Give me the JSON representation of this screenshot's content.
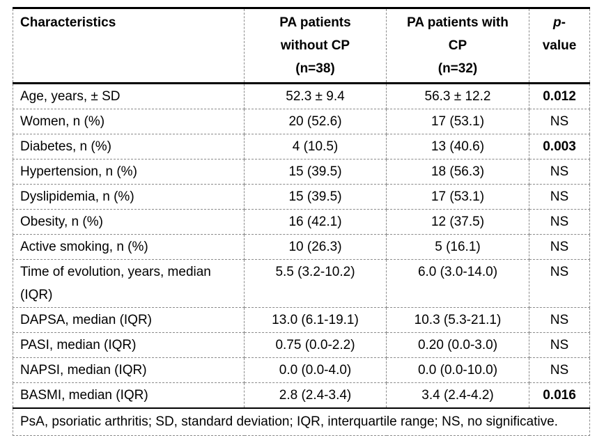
{
  "table": {
    "header": {
      "characteristics": "Characteristics",
      "group1_line1": "PA patients",
      "group1_line2": "without CP",
      "group1_line3": "(n=38)",
      "group2_line1": "PA patients with",
      "group2_line2": "CP",
      "group2_line3": "(n=32)",
      "pvalue_italic": "p",
      "pvalue_rest": "-value"
    },
    "rows": [
      {
        "characteristic": "Age, years, ± SD",
        "without_cp": "52.3 ± 9.4",
        "with_cp": "56.3 ± 12.2",
        "p_value": "0.012"
      },
      {
        "characteristic": "Women, n (%)",
        "without_cp": "20 (52.6)",
        "with_cp": "17 (53.1)",
        "p_value": "NS"
      },
      {
        "characteristic": "Diabetes, n (%)",
        "without_cp": "4 (10.5)",
        "with_cp": "13 (40.6)",
        "p_value": "0.003"
      },
      {
        "characteristic": "Hypertension, n (%)",
        "without_cp": "15 (39.5)",
        "with_cp": "18 (56.3)",
        "p_value": "NS"
      },
      {
        "characteristic": "Dyslipidemia, n (%)",
        "without_cp": "15 (39.5)",
        "with_cp": "17 (53.1)",
        "p_value": "NS"
      },
      {
        "characteristic": "Obesity, n (%)",
        "without_cp": "16 (42.1)",
        "with_cp": "12 (37.5)",
        "p_value": "NS"
      },
      {
        "characteristic": "Active smoking, n (%)",
        "without_cp": "10 (26.3)",
        "with_cp": "5 (16.1)",
        "p_value": "NS"
      },
      {
        "characteristic": "Time of evolution, years, median (IQR)",
        "without_cp": "5.5 (3.2-10.2)",
        "with_cp": "6.0 (3.0-14.0)",
        "p_value": "NS"
      },
      {
        "characteristic": "DAPSA, median (IQR)",
        "without_cp": "13.0 (6.1-19.1)",
        "with_cp": "10.3 (5.3-21.1)",
        "p_value": "NS"
      },
      {
        "characteristic": "PASI, median (IQR)",
        "without_cp": "0.75 (0.0-2.2)",
        "with_cp": "0.20 (0.0-3.0)",
        "p_value": "NS"
      },
      {
        "characteristic": "NAPSI, median (IQR)",
        "without_cp": "0.0 (0.0-4.0)",
        "with_cp": "0.0 (0.0-10.0)",
        "p_value": "NS"
      },
      {
        "characteristic": "BASMI, median (IQR)",
        "without_cp": "2.8 (2.4-3.4)",
        "with_cp": "3.4 (2.4-4.2)",
        "p_value": "0.016"
      }
    ],
    "footnote": "PsA, psoriatic arthritis; SD, standard deviation; IQR, interquartile range; NS, no significative.",
    "colors": {
      "solid_border": "#000000",
      "dashed_border": "#8a8a8a",
      "text": "#000000",
      "background": "#ffffff"
    }
  }
}
